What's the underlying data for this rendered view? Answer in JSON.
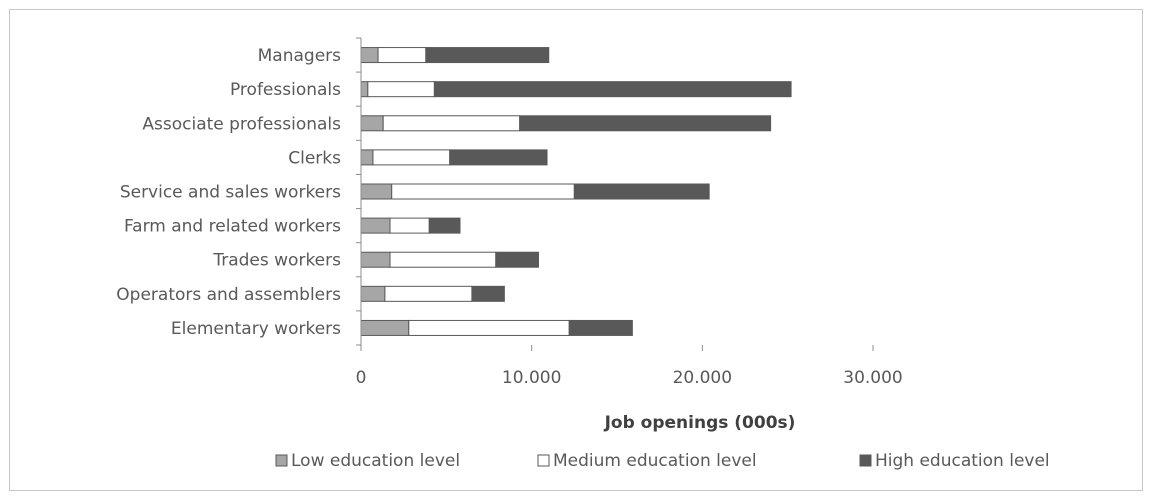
{
  "chart_data": {
    "type": "bar",
    "orientation": "horizontal",
    "stacked": true,
    "title": "",
    "xlabel": "Job openings (000s)",
    "ylabel": "",
    "xlim": [
      0,
      30000
    ],
    "xticks": [
      0,
      10000,
      20000,
      30000
    ],
    "xtick_labels": [
      "0",
      "10.000",
      "20.000",
      "30.000"
    ],
    "grid": false,
    "legend_position": "bottom",
    "categories": [
      "Managers",
      "Professionals",
      "Associate professionals",
      "Clerks",
      "Service and sales workers",
      "Farm and related workers",
      "Trades workers",
      "Operators and assemblers",
      "Elementary workers"
    ],
    "series": [
      {
        "name": "Low education level",
        "color": "#a6a6a6",
        "values": [
          1000,
          400,
          1300,
          700,
          1800,
          1700,
          1700,
          1400,
          2800
        ]
      },
      {
        "name": "Medium education level",
        "color": "#ffffff",
        "values": [
          2800,
          3900,
          8000,
          4500,
          10700,
          2300,
          6200,
          5100,
          9400
        ]
      },
      {
        "name": "High education level",
        "color": "#595959",
        "values": [
          7200,
          20900,
          14700,
          5700,
          7900,
          1800,
          2500,
          1900,
          3700
        ]
      }
    ]
  }
}
